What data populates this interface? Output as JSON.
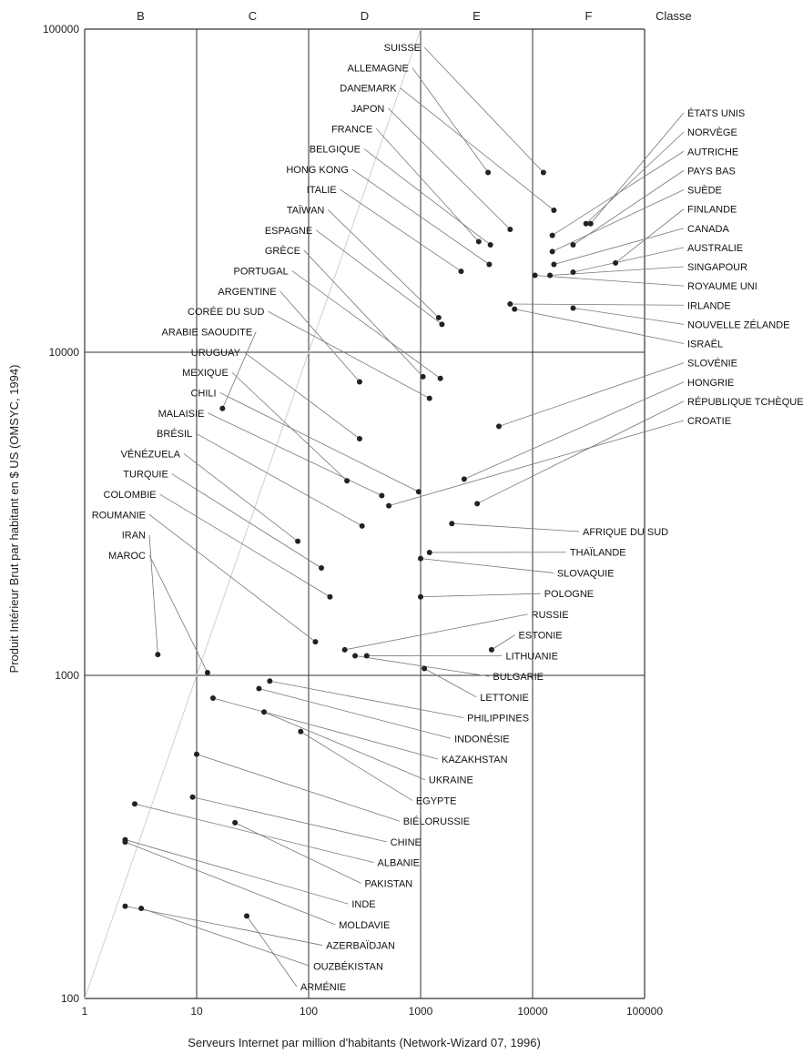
{
  "chart_data": {
    "type": "scatter",
    "xlabel": "Serveurs Internet par million d'habitants (Network-Wizard 07, 1996)",
    "ylabel": "Produit Intérieur Brut par habitant en $ US (OMSYC, 1994)",
    "x_scale": "log",
    "y_scale": "log",
    "xlim": [
      1,
      100000
    ],
    "ylim": [
      100,
      100000
    ],
    "x_ticks": [
      "1",
      "10",
      "100",
      "1000",
      "10000",
      "100000"
    ],
    "y_ticks": [
      "100",
      "1000",
      "10000",
      "100000"
    ],
    "grid": true,
    "diagonal": "y = 100 x",
    "classes_title": "Classe",
    "classes": [
      "B",
      "C",
      "D",
      "E",
      "F"
    ],
    "points": [
      {
        "label": "SUISSE",
        "x": 12500,
        "y": 36000,
        "label_side": "left"
      },
      {
        "label": "DANEMARK",
        "x": 15500,
        "y": 27500,
        "label_side": "left"
      },
      {
        "label": "JAPON",
        "x": 6300,
        "y": 24000,
        "label_side": "left"
      },
      {
        "label": "ALLEMAGNE",
        "x": 4000,
        "y": 36000,
        "label_side": "left"
      },
      {
        "label": "BELGIQUE",
        "x": 4200,
        "y": 21500,
        "label_side": "left"
      },
      {
        "label": "FRANCE",
        "x": 3300,
        "y": 22000,
        "label_side": "left"
      },
      {
        "label": "HONG KONG",
        "x": 4100,
        "y": 18700,
        "label_side": "left"
      },
      {
        "label": "ITALIE",
        "x": 2300,
        "y": 17800,
        "label_side": "left"
      },
      {
        "label": "TAÏWAN",
        "x": 1450,
        "y": 12800,
        "label_side": "left"
      },
      {
        "label": "ESPAGNE",
        "x": 1550,
        "y": 12200,
        "label_side": "left"
      },
      {
        "label": "PORTUGAL",
        "x": 1500,
        "y": 8300,
        "label_side": "left"
      },
      {
        "label": "CORÉE DU SUD",
        "x": 1200,
        "y": 7200,
        "label_side": "left"
      },
      {
        "label": "GRÈCE",
        "x": 1050,
        "y": 8400,
        "label_side": "left"
      },
      {
        "label": "ARGENTINE",
        "x": 285,
        "y": 8100,
        "label_side": "left"
      },
      {
        "label": "URUGUAY",
        "x": 285,
        "y": 5400,
        "label_side": "left"
      },
      {
        "label": "CHILI",
        "x": 960,
        "y": 3700,
        "label_side": "left"
      },
      {
        "label": "MALAISIE",
        "x": 450,
        "y": 3600,
        "label_side": "left"
      },
      {
        "label": "ARABIE SAOUDITE",
        "x": 17,
        "y": 6700,
        "label_side": "left"
      },
      {
        "label": "MEXIQUE",
        "x": 220,
        "y": 4000,
        "label_side": "left"
      },
      {
        "label": "BRÉSIL",
        "x": 300,
        "y": 2900,
        "label_side": "left"
      },
      {
        "label": "VÉNÉZUELA",
        "x": 80,
        "y": 2600,
        "label_side": "left"
      },
      {
        "label": "TURQUIE",
        "x": 130,
        "y": 2150,
        "label_side": "left"
      },
      {
        "label": "COLOMBIE",
        "x": 155,
        "y": 1750,
        "label_side": "left"
      },
      {
        "label": "ROUMANIE",
        "x": 115,
        "y": 1270,
        "label_side": "left"
      },
      {
        "label": "MAROC",
        "x": 12.5,
        "y": 1020,
        "label_side": "left"
      },
      {
        "label": "IRAN",
        "x": 4.5,
        "y": 1160,
        "label_side": "left"
      },
      {
        "label": "AUTRICHE",
        "x": 15000,
        "y": 23000,
        "label_side": "right"
      },
      {
        "label": "ÉTATS UNIS",
        "x": 33000,
        "y": 25000,
        "label_side": "right"
      },
      {
        "label": "NORVÈGE",
        "x": 30000,
        "y": 25000,
        "label_side": "right"
      },
      {
        "label": "PAYS BAS",
        "x": 23000,
        "y": 21500,
        "label_side": "right"
      },
      {
        "label": "SUÈDE",
        "x": 15000,
        "y": 20500,
        "label_side": "right"
      },
      {
        "label": "CANADA",
        "x": 15500,
        "y": 18700,
        "label_side": "right"
      },
      {
        "label": "FINLANDE",
        "x": 55000,
        "y": 18900,
        "label_side": "right"
      },
      {
        "label": "AUSTRALIE",
        "x": 23000,
        "y": 17700,
        "label_side": "right"
      },
      {
        "label": "SINGAPOUR",
        "x": 14300,
        "y": 17300,
        "label_side": "right"
      },
      {
        "label": "ROYAUME UNI",
        "x": 10500,
        "y": 17300,
        "label_side": "right"
      },
      {
        "label": "NOUVELLE ZÉLANDE",
        "x": 23000,
        "y": 13700,
        "label_side": "right"
      },
      {
        "label": "IRLANDE",
        "x": 6300,
        "y": 14100,
        "label_side": "right"
      },
      {
        "label": "ISRAËL",
        "x": 6900,
        "y": 13600,
        "label_side": "right"
      },
      {
        "label": "SLOVÉNIE",
        "x": 5000,
        "y": 5900,
        "label_side": "right"
      },
      {
        "label": "HONGRIE",
        "x": 2450,
        "y": 4050,
        "label_side": "right"
      },
      {
        "label": "RÉPUBLIQUE TCHÈQUE",
        "x": 3200,
        "y": 3400,
        "label_side": "right"
      },
      {
        "label": "CROATIE",
        "x": 520,
        "y": 3350,
        "label_side": "right"
      },
      {
        "label": "AFRIQUE DU SUD",
        "x": 1900,
        "y": 2950,
        "label_side": "right"
      },
      {
        "label": "THAÏLANDE",
        "x": 1200,
        "y": 2400,
        "label_side": "right"
      },
      {
        "label": "SLOVAQUIE",
        "x": 1000,
        "y": 2300,
        "label_side": "right"
      },
      {
        "label": "POLOGNE",
        "x": 1000,
        "y": 1750,
        "label_side": "right"
      },
      {
        "label": "RUSSIE",
        "x": 210,
        "y": 1200,
        "label_side": "right"
      },
      {
        "label": "ESTONIE",
        "x": 4300,
        "y": 1200,
        "label_side": "right"
      },
      {
        "label": "LITHUANIE",
        "x": 330,
        "y": 1150,
        "label_side": "right"
      },
      {
        "label": "LETTONIE",
        "x": 1080,
        "y": 1050,
        "label_side": "right"
      },
      {
        "label": "BULGARIE",
        "x": 260,
        "y": 1150,
        "label_side": "right"
      },
      {
        "label": "PHILIPPINES",
        "x": 45,
        "y": 960,
        "label_side": "right"
      },
      {
        "label": "INDONÉSIE",
        "x": 36,
        "y": 910,
        "label_side": "right"
      },
      {
        "label": "KAZAKHSTAN",
        "x": 14,
        "y": 850,
        "label_side": "right"
      },
      {
        "label": "UKRAINE",
        "x": 40,
        "y": 770,
        "label_side": "right"
      },
      {
        "label": "EGYPTE",
        "x": 85,
        "y": 670,
        "label_side": "right"
      },
      {
        "label": "BIÉLORUSSIE",
        "x": 10,
        "y": 570,
        "label_side": "right"
      },
      {
        "label": "CHINE",
        "x": 9.2,
        "y": 420,
        "label_side": "right"
      },
      {
        "label": "ALBANIE",
        "x": 2.8,
        "y": 400,
        "label_side": "right"
      },
      {
        "label": "PAKISTAN",
        "x": 22,
        "y": 350,
        "label_side": "right"
      },
      {
        "label": "INDE",
        "x": 2.3,
        "y": 310,
        "label_side": "right"
      },
      {
        "label": "MOLDAVIE",
        "x": 2.3,
        "y": 305,
        "label_side": "right"
      },
      {
        "label": "ARMÉNIE",
        "x": 28,
        "y": 180,
        "label_side": "right"
      },
      {
        "label": "AZERBAÏDJAN",
        "x": 2.3,
        "y": 193,
        "label_side": "right"
      },
      {
        "label": "OUZBÉKISTAN",
        "x": 3.2,
        "y": 190,
        "label_side": "right"
      }
    ]
  }
}
